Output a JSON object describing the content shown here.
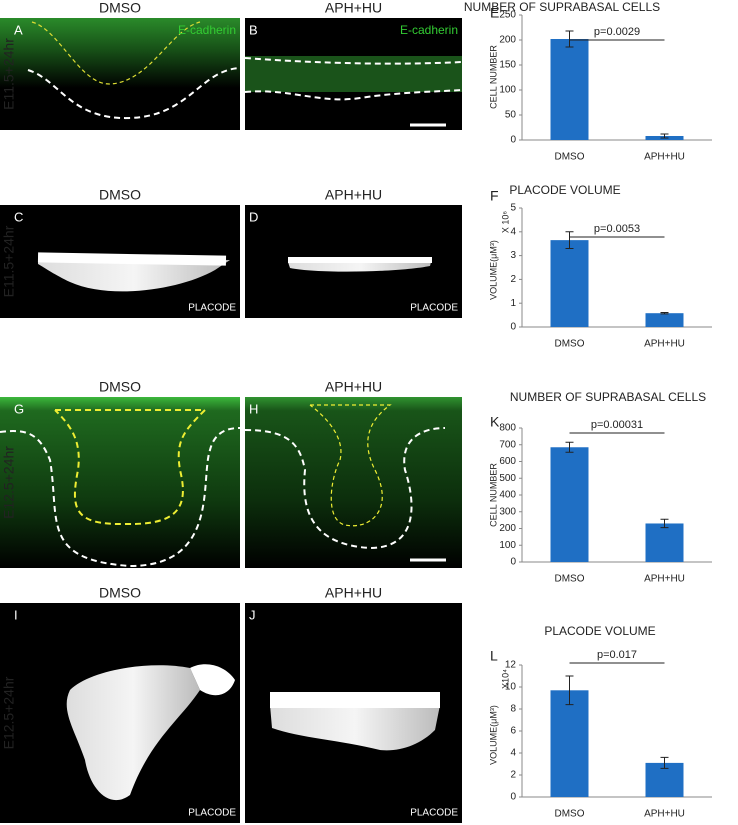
{
  "rows": [
    {
      "label": "E11.5+24hr",
      "panels": [
        {
          "letter": "A",
          "title": "DMSO",
          "stain": "E-cadherin"
        },
        {
          "letter": "B",
          "title": "APH+HU",
          "stain": "E-cadherin"
        }
      ]
    },
    {
      "label": "E11.5+24hr",
      "panels": [
        {
          "letter": "C",
          "title": "DMSO",
          "stain": "PLACODE"
        },
        {
          "letter": "D",
          "title": "APH+HU",
          "stain": "PLACODE"
        }
      ]
    },
    {
      "label": "E12.5+24hr",
      "panels": [
        {
          "letter": "G",
          "title": "DMSO"
        },
        {
          "letter": "H",
          "title": "APH+HU"
        }
      ]
    },
    {
      "label": "E12.5+24hr",
      "panels": [
        {
          "letter": "I",
          "title": "DMSO",
          "stain": "PLACODE"
        },
        {
          "letter": "J",
          "title": "APH+HU",
          "stain": "PLACODE"
        }
      ]
    }
  ],
  "chart_data": [
    {
      "type": "bar",
      "panel_label": "E",
      "title": "NUMBER OF SUPRABASAL CELLS",
      "ylabel": "CELL NUMBER",
      "annotation": "p=0.0029",
      "categories": [
        "DMSO",
        "APH+HU"
      ],
      "values": [
        202,
        8
      ],
      "errors": [
        16,
        4
      ],
      "color": "#1f6fc4",
      "ylim": [
        0,
        250
      ],
      "yticks": [
        0,
        50,
        100,
        150,
        200,
        250
      ]
    },
    {
      "type": "bar",
      "panel_label": "F",
      "title": "PLACODE VOLUME",
      "ylabel": "VOLUME(μM³)",
      "ylabel_multiplier": "X 10⁶",
      "annotation": "p=0.0053",
      "categories": [
        "DMSO",
        "APH+HU"
      ],
      "values": [
        3.65,
        0.58
      ],
      "errors": [
        0.35,
        0.03
      ],
      "color": "#1f6fc4",
      "ylim": [
        0,
        5
      ],
      "yticks": [
        0,
        1,
        2,
        3,
        4,
        5
      ]
    },
    {
      "type": "bar",
      "panel_label": "K",
      "title": "NUMBER OF SUPRABASAL CELLS",
      "ylabel": "CELL NUMBER",
      "annotation": "p=0.00031",
      "categories": [
        "DMSO",
        "APH+HU"
      ],
      "values": [
        685,
        230
      ],
      "errors": [
        30,
        25
      ],
      "color": "#1f6fc4",
      "ylim": [
        0,
        800
      ],
      "yticks": [
        0,
        100,
        200,
        300,
        400,
        500,
        600,
        700,
        800
      ]
    },
    {
      "type": "bar",
      "panel_label": "L",
      "title": "PLACODE VOLUME",
      "ylabel": "VOLUME(μM³)",
      "ylabel_multiplier": "X10⁴",
      "annotation": "p=0.017",
      "categories": [
        "DMSO",
        "APH+HU"
      ],
      "values": [
        9.7,
        3.1
      ],
      "errors": [
        1.3,
        0.5
      ],
      "color": "#1f6fc4",
      "ylim": [
        0,
        12
      ],
      "yticks": [
        0,
        2,
        4,
        6,
        8,
        10,
        12
      ]
    }
  ]
}
